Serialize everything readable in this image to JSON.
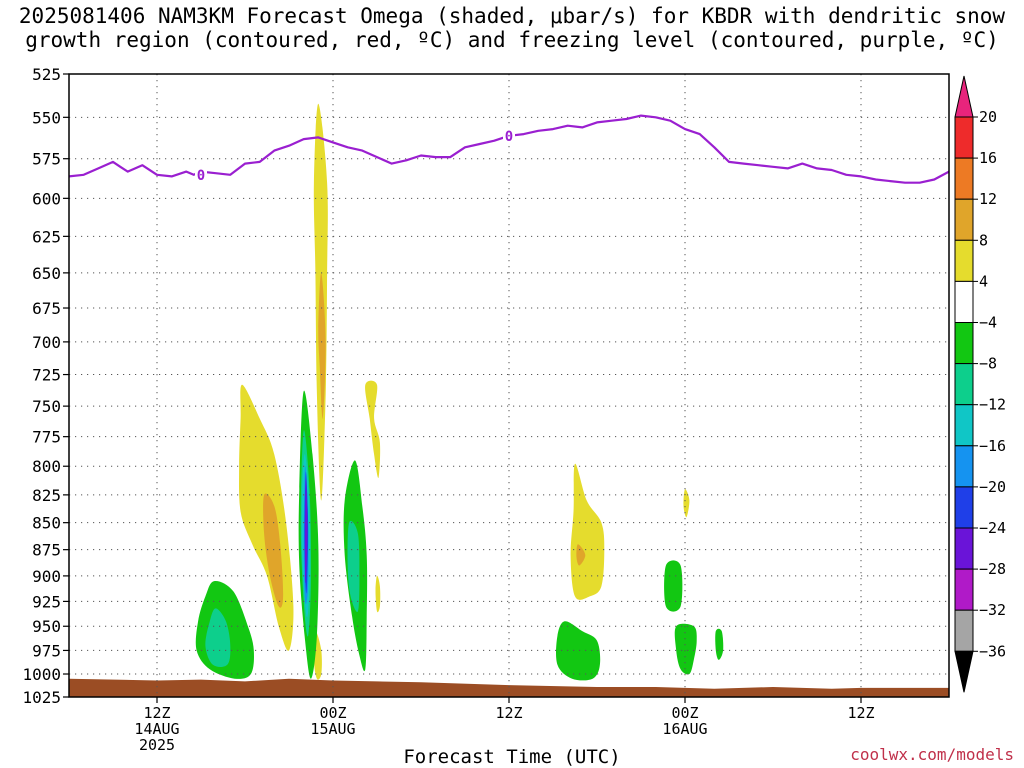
{
  "title": {
    "line1": "2025081406 NAM3KM Forecast Omega (shaded, μbar/s) for KBDR with dendritic snow",
    "line2": "growth region (contoured, red, ºC) and freezing level (contoured, purple, ºC)"
  },
  "watermark": "coolwx.com/models",
  "chart_data": {
    "type": "heatmap",
    "x_label": "Forecast Time (UTC)",
    "x_unit": "forecast hour",
    "x_range": [
      0,
      60
    ],
    "x_ticks": [
      {
        "hour": 6,
        "lines": [
          "12Z",
          "14AUG",
          "2025"
        ]
      },
      {
        "hour": 18,
        "lines": [
          "00Z",
          "15AUG"
        ]
      },
      {
        "hour": 30,
        "lines": [
          "12Z"
        ]
      },
      {
        "hour": 42,
        "lines": [
          "00Z",
          "16AUG"
        ]
      },
      {
        "hour": 54,
        "lines": [
          "12Z"
        ]
      }
    ],
    "y_unit": "hPa",
    "y_range": [
      525,
      1025
    ],
    "y_scale": "log",
    "y_ticks": [
      525,
      550,
      575,
      600,
      625,
      650,
      675,
      700,
      725,
      750,
      775,
      800,
      825,
      850,
      875,
      900,
      925,
      950,
      975,
      1000,
      1025
    ],
    "grid": true,
    "colorbar": {
      "ticks": [
        "20",
        "16",
        "12",
        "8",
        "4",
        "−4",
        "−8",
        "−12",
        "−16",
        "−20",
        "−24",
        "−28",
        "−32",
        "−36"
      ],
      "bins": [
        {
          "from": 20,
          "to": 24,
          "color": "#e8247c"
        },
        {
          "from": 16,
          "to": 20,
          "color": "#ee2b2b"
        },
        {
          "from": 12,
          "to": 16,
          "color": "#ed7a24"
        },
        {
          "from": 8,
          "to": 12,
          "color": "#e0a52a"
        },
        {
          "from": 4,
          "to": 8,
          "color": "#e5dc2d"
        },
        {
          "from": -4,
          "to": 4,
          "color": "#ffffff"
        },
        {
          "from": -8,
          "to": -4,
          "color": "#12c712"
        },
        {
          "from": -12,
          "to": -8,
          "color": "#0dcf8c"
        },
        {
          "from": -16,
          "to": -12,
          "color": "#10c6c6"
        },
        {
          "from": -20,
          "to": -16,
          "color": "#1593f0"
        },
        {
          "from": -24,
          "to": -20,
          "color": "#1f3fe8"
        },
        {
          "from": -28,
          "to": -24,
          "color": "#6a14d8"
        },
        {
          "from": -32,
          "to": -28,
          "color": "#b01ac8"
        },
        {
          "from": -36,
          "to": -32,
          "color": "#a5a5a5"
        },
        {
          "from": -40,
          "to": -36,
          "color": "#000000"
        }
      ]
    },
    "freezing_level": {
      "label": "0",
      "color": "#9a1fd0",
      "points": [
        [
          0,
          586
        ],
        [
          1,
          585
        ],
        [
          2,
          581
        ],
        [
          3,
          577
        ],
        [
          3.5,
          580
        ],
        [
          4,
          583
        ],
        [
          5,
          579
        ],
        [
          6,
          585
        ],
        [
          7,
          586
        ],
        [
          8,
          583
        ],
        [
          8.5,
          585
        ],
        [
          9,
          583
        ],
        [
          10,
          584
        ],
        [
          11,
          585
        ],
        [
          12,
          578
        ],
        [
          13,
          577
        ],
        [
          14,
          570
        ],
        [
          15,
          567
        ],
        [
          16,
          563
        ],
        [
          17,
          562
        ],
        [
          18,
          565
        ],
        [
          19,
          568
        ],
        [
          20,
          570
        ],
        [
          21,
          574
        ],
        [
          22,
          578
        ],
        [
          23,
          576
        ],
        [
          24,
          573
        ],
        [
          25,
          574
        ],
        [
          26,
          574
        ],
        [
          27,
          568
        ],
        [
          28,
          566
        ],
        [
          29,
          564
        ],
        [
          30,
          561
        ],
        [
          31,
          560
        ],
        [
          32,
          558
        ],
        [
          33,
          557
        ],
        [
          34,
          555
        ],
        [
          35,
          556
        ],
        [
          36,
          553
        ],
        [
          37,
          552
        ],
        [
          38,
          551
        ],
        [
          39,
          549
        ],
        [
          40,
          550
        ],
        [
          41,
          552
        ],
        [
          42,
          557
        ],
        [
          43,
          560
        ],
        [
          44,
          568
        ],
        [
          45,
          577
        ],
        [
          46,
          578
        ],
        [
          47,
          579
        ],
        [
          48,
          580
        ],
        [
          49,
          581
        ],
        [
          50,
          578
        ],
        [
          51,
          581
        ],
        [
          52,
          582
        ],
        [
          53,
          585
        ],
        [
          54,
          586
        ],
        [
          55,
          588
        ],
        [
          56,
          589
        ],
        [
          57,
          590
        ],
        [
          58,
          590
        ],
        [
          59,
          588
        ],
        [
          60,
          583
        ]
      ]
    },
    "omega_regions": [
      {
        "color": "#e5dc2d",
        "points": [
          [
            17.0,
            542
          ],
          [
            17.6,
            590
          ],
          [
            17.6,
            650
          ],
          [
            17.5,
            740
          ],
          [
            17.2,
            830
          ],
          [
            16.9,
            740
          ],
          [
            16.8,
            650
          ],
          [
            16.7,
            590
          ]
        ]
      },
      {
        "color": "#e0a52a",
        "points": [
          [
            17.2,
            650
          ],
          [
            17.5,
            700
          ],
          [
            17.3,
            760
          ],
          [
            17.1,
            720
          ],
          [
            17.0,
            690
          ]
        ]
      },
      {
        "color": "#e5dc2d",
        "points": [
          [
            11.8,
            733
          ],
          [
            13.0,
            760
          ],
          [
            14.0,
            790
          ],
          [
            14.8,
            850
          ],
          [
            15.3,
            930
          ],
          [
            15.0,
            975
          ],
          [
            14.3,
            950
          ],
          [
            13.5,
            900
          ],
          [
            12.5,
            870
          ],
          [
            11.7,
            840
          ],
          [
            11.6,
            800
          ],
          [
            11.7,
            760
          ]
        ]
      },
      {
        "color": "#e0a52a",
        "points": [
          [
            13.3,
            825
          ],
          [
            14.0,
            835
          ],
          [
            14.4,
            870
          ],
          [
            14.6,
            920
          ],
          [
            14.3,
            930
          ],
          [
            13.7,
            900
          ],
          [
            13.3,
            860
          ]
        ]
      },
      {
        "color": "#e5dc2d",
        "points": [
          [
            16.8,
            955
          ],
          [
            17.2,
            975
          ],
          [
            17.2,
            1000
          ],
          [
            16.9,
            1005
          ],
          [
            16.7,
            985
          ]
        ]
      },
      {
        "color": "#e5dc2d",
        "points": [
          [
            20.2,
            733
          ],
          [
            21.0,
            733
          ],
          [
            20.8,
            760
          ],
          [
            21.2,
            780
          ],
          [
            21.1,
            810
          ],
          [
            20.8,
            790
          ],
          [
            20.5,
            760
          ]
        ]
      },
      {
        "color": "#e5dc2d",
        "points": [
          [
            21.0,
            900
          ],
          [
            21.2,
            910
          ],
          [
            21.2,
            930
          ],
          [
            21.0,
            935
          ],
          [
            20.9,
            915
          ]
        ]
      },
      {
        "color": "#12c712",
        "points": [
          [
            16.0,
            738
          ],
          [
            16.6,
            790
          ],
          [
            17.0,
            870
          ],
          [
            16.9,
            960
          ],
          [
            16.5,
            1005
          ],
          [
            16.1,
            965
          ],
          [
            15.7,
            890
          ],
          [
            15.7,
            820
          ]
        ]
      },
      {
        "color": "#0dcf8c",
        "points": [
          [
            16.0,
            770
          ],
          [
            16.4,
            820
          ],
          [
            16.5,
            900
          ],
          [
            16.3,
            960
          ],
          [
            16.0,
            925
          ],
          [
            15.8,
            850
          ]
        ]
      },
      {
        "color": "#10c6c6",
        "points": [
          [
            16.1,
            790
          ],
          [
            16.4,
            840
          ],
          [
            16.4,
            910
          ],
          [
            16.2,
            940
          ],
          [
            15.9,
            880
          ],
          [
            15.9,
            820
          ]
        ]
      },
      {
        "color": "#1593f0",
        "points": [
          [
            16.1,
            800
          ],
          [
            16.3,
            850
          ],
          [
            16.3,
            910
          ],
          [
            16.1,
            925
          ],
          [
            16.0,
            870
          ]
        ]
      },
      {
        "color": "#1f3fe8",
        "points": [
          [
            16.15,
            805
          ],
          [
            16.3,
            850
          ],
          [
            16.25,
            900
          ],
          [
            16.15,
            915
          ],
          [
            16.05,
            860
          ]
        ]
      },
      {
        "color": "#6a14d8",
        "points": [
          [
            16.15,
            810
          ],
          [
            16.25,
            850
          ],
          [
            16.2,
            890
          ],
          [
            16.1,
            905
          ],
          [
            16.1,
            850
          ]
        ]
      },
      {
        "color": "#12c712",
        "points": [
          [
            19.5,
            795
          ],
          [
            20.0,
            835
          ],
          [
            20.3,
            880
          ],
          [
            20.3,
            940
          ],
          [
            20.2,
            995
          ],
          [
            19.8,
            980
          ],
          [
            19.3,
            940
          ],
          [
            18.8,
            880
          ],
          [
            18.8,
            830
          ]
        ]
      },
      {
        "color": "#0dcf8c",
        "points": [
          [
            19.1,
            850
          ],
          [
            19.7,
            860
          ],
          [
            19.8,
            900
          ],
          [
            19.7,
            935
          ],
          [
            19.2,
            920
          ],
          [
            19.0,
            890
          ]
        ]
      },
      {
        "color": "#12c712",
        "points": [
          [
            9.9,
            905
          ],
          [
            11.2,
            915
          ],
          [
            12.2,
            950
          ],
          [
            12.6,
            975
          ],
          [
            12.4,
            1000
          ],
          [
            11.3,
            1005
          ],
          [
            9.6,
            995
          ],
          [
            8.7,
            975
          ],
          [
            8.8,
            945
          ],
          [
            9.3,
            920
          ]
        ]
      },
      {
        "color": "#0dcf8c",
        "points": [
          [
            10.0,
            932
          ],
          [
            10.7,
            945
          ],
          [
            11.0,
            970
          ],
          [
            10.8,
            990
          ],
          [
            9.8,
            990
          ],
          [
            9.3,
            970
          ],
          [
            9.6,
            945
          ]
        ]
      },
      {
        "color": "#e5dc2d",
        "points": [
          [
            34.5,
            798
          ],
          [
            35.3,
            830
          ],
          [
            36.3,
            850
          ],
          [
            36.5,
            875
          ],
          [
            36.3,
            910
          ],
          [
            35.5,
            920
          ],
          [
            34.5,
            920
          ],
          [
            34.2,
            880
          ],
          [
            34.4,
            840
          ]
        ]
      },
      {
        "color": "#e0a52a",
        "points": [
          [
            34.7,
            870
          ],
          [
            35.2,
            880
          ],
          [
            34.8,
            890
          ],
          [
            34.6,
            882
          ]
        ]
      },
      {
        "color": "#12c712",
        "points": [
          [
            33.8,
            945
          ],
          [
            35.0,
            955
          ],
          [
            36.0,
            965
          ],
          [
            36.2,
            990
          ],
          [
            35.7,
            1005
          ],
          [
            34.3,
            1005
          ],
          [
            33.3,
            990
          ],
          [
            33.3,
            960
          ]
        ]
      },
      {
        "color": "#e5dc2d",
        "points": [
          [
            42.0,
            820
          ],
          [
            42.3,
            830
          ],
          [
            42.1,
            845
          ],
          [
            41.9,
            835
          ]
        ]
      },
      {
        "color": "#12c712",
        "points": [
          [
            40.7,
            890
          ],
          [
            41.7,
            890
          ],
          [
            41.7,
            930
          ],
          [
            40.7,
            930
          ]
        ]
      },
      {
        "color": "#12c712",
        "points": [
          [
            41.4,
            950
          ],
          [
            42.6,
            950
          ],
          [
            42.8,
            965
          ],
          [
            42.6,
            985
          ],
          [
            42.3,
            1000
          ],
          [
            41.7,
            995
          ],
          [
            41.4,
            975
          ]
        ]
      },
      {
        "color": "#12c712",
        "points": [
          [
            44.1,
            955
          ],
          [
            44.5,
            955
          ],
          [
            44.6,
            975
          ],
          [
            44.3,
            985
          ],
          [
            44.1,
            975
          ]
        ]
      }
    ],
    "terrain": {
      "color": "#9b4d24",
      "surface": [
        [
          0,
          1005
        ],
        [
          6,
          1007
        ],
        [
          9,
          1006
        ],
        [
          12,
          1008
        ],
        [
          15,
          1005
        ],
        [
          18,
          1007
        ],
        [
          21,
          1008
        ],
        [
          24,
          1009
        ],
        [
          30,
          1012
        ],
        [
          36,
          1014
        ],
        [
          40,
          1014
        ],
        [
          44,
          1016
        ],
        [
          48,
          1014
        ],
        [
          52,
          1016
        ],
        [
          54,
          1015
        ],
        [
          60,
          1015
        ]
      ]
    }
  }
}
